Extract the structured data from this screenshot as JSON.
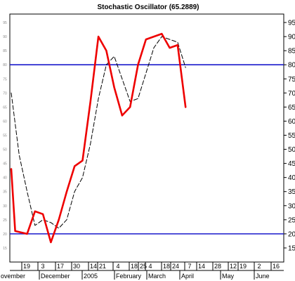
{
  "chart_data": {
    "type": "line",
    "title": "Stochastic Oscillator (65.2889)",
    "xlabel": "",
    "ylabel": "",
    "ylim": [
      10,
      98
    ],
    "y_ticks": [
      15,
      20,
      25,
      30,
      35,
      40,
      45,
      50,
      55,
      60,
      65,
      70,
      75,
      80,
      85,
      90,
      95
    ],
    "reference_lines": [
      {
        "value": 80,
        "color": "#1a1acc"
      },
      {
        "value": 20,
        "color": "#1a1acc"
      }
    ],
    "x_tick_labels": [
      "19",
      "3",
      "17",
      "30",
      "14",
      "21",
      "4",
      "18",
      "25",
      "4",
      "18",
      "24",
      "7",
      "14",
      "28",
      "12",
      "19",
      "2",
      "16"
    ],
    "x_month_labels": [
      "ovember",
      "December",
      "2005",
      "February",
      "March",
      "April",
      "May",
      "June"
    ],
    "grid": false,
    "series": [
      {
        "style": "solid",
        "color": "#ee0000",
        "points": [
          {
            "x": 0,
            "y": 43
          },
          {
            "x": 0.5,
            "y": 21
          },
          {
            "x": 2,
            "y": 20
          },
          {
            "x": 3,
            "y": 28
          },
          {
            "x": 4,
            "y": 27
          },
          {
            "x": 5,
            "y": 17
          },
          {
            "x": 6,
            "y": 25
          },
          {
            "x": 7,
            "y": 35
          },
          {
            "x": 8,
            "y": 44
          },
          {
            "x": 9,
            "y": 46
          },
          {
            "x": 10,
            "y": 67
          },
          {
            "x": 11,
            "y": 90
          },
          {
            "x": 12,
            "y": 85
          },
          {
            "x": 13,
            "y": 72
          },
          {
            "x": 14,
            "y": 62
          },
          {
            "x": 15,
            "y": 65
          },
          {
            "x": 16,
            "y": 80
          },
          {
            "x": 17,
            "y": 89
          },
          {
            "x": 18,
            "y": 90
          },
          {
            "x": 19,
            "y": 91
          },
          {
            "x": 20,
            "y": 86
          },
          {
            "x": 21,
            "y": 87
          },
          {
            "x": 22,
            "y": 65
          }
        ]
      },
      {
        "style": "dashed",
        "color": "#000000",
        "points": [
          {
            "x": 0,
            "y": 70
          },
          {
            "x": 1,
            "y": 48
          },
          {
            "x": 2,
            "y": 35
          },
          {
            "x": 3,
            "y": 23
          },
          {
            "x": 4,
            "y": 25
          },
          {
            "x": 5,
            "y": 24
          },
          {
            "x": 6,
            "y": 22
          },
          {
            "x": 7,
            "y": 25
          },
          {
            "x": 8,
            "y": 35
          },
          {
            "x": 9,
            "y": 40
          },
          {
            "x": 10,
            "y": 52
          },
          {
            "x": 11,
            "y": 68
          },
          {
            "x": 12,
            "y": 80
          },
          {
            "x": 13,
            "y": 83
          },
          {
            "x": 14,
            "y": 75
          },
          {
            "x": 15,
            "y": 67
          },
          {
            "x": 16,
            "y": 68
          },
          {
            "x": 17,
            "y": 77
          },
          {
            "x": 18,
            "y": 86
          },
          {
            "x": 19,
            "y": 90
          },
          {
            "x": 20,
            "y": 89
          },
          {
            "x": 21,
            "y": 88
          },
          {
            "x": 22,
            "y": 79
          }
        ]
      }
    ]
  }
}
